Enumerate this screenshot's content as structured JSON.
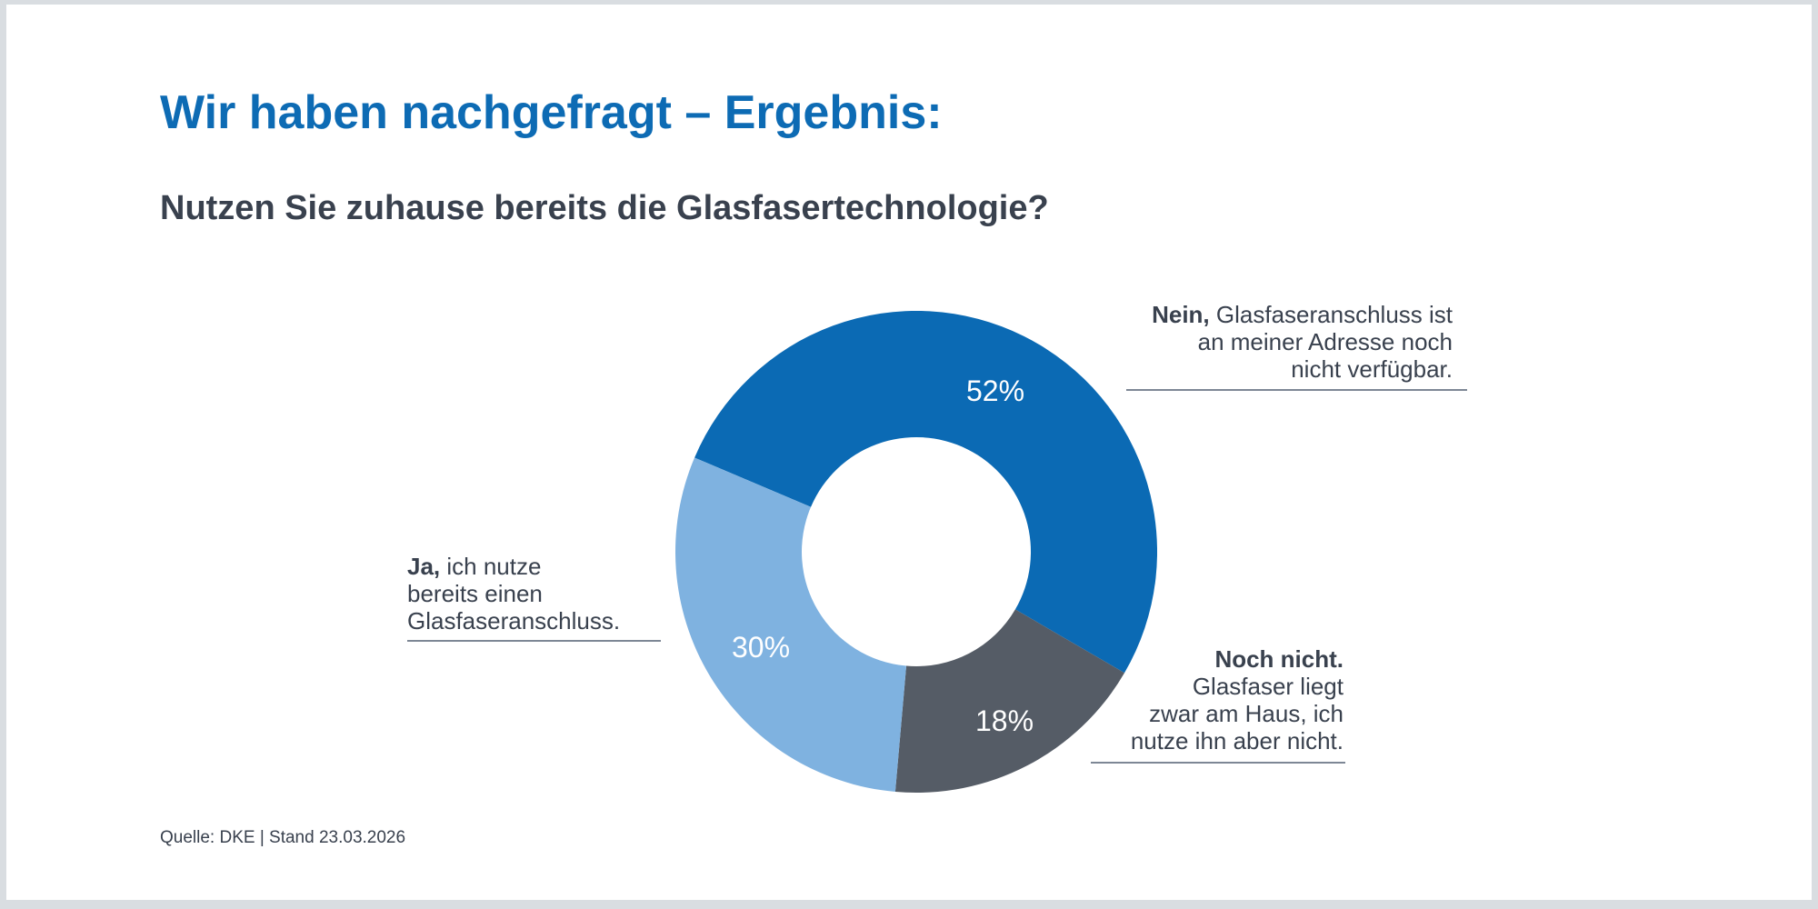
{
  "frame": {
    "background_color": "#d9dde1",
    "slide_background_color": "#ffffff"
  },
  "header": {
    "title": "Wir haben nachgefragt – Ergebnis:",
    "title_color": "#0d6bb4",
    "question": "Nutzen Sie zuhause bereits die Glasfasertechnologie?",
    "text_color": "#39414e"
  },
  "chart_data": {
    "type": "pie",
    "variant": "donut",
    "title": "Nutzen Sie zuhause bereits die Glasfasertechnologie?",
    "unit": "percent",
    "start_angle_deg": 293,
    "inner_radius_ratio": 0.475,
    "value_label_color": "#ffffff",
    "legend_position": "callouts",
    "slices": [
      {
        "name": "Nein, Glasfaseranschluss ist an meiner Adresse noch nicht verfügbar.",
        "value": 52,
        "display": "52%",
        "color": "#0b6ab4"
      },
      {
        "name": "Noch nicht. Glasfaser liegt zwar am Haus, ich nutze ihn aber nicht.",
        "value": 18,
        "display": "18%",
        "color": "#555c66"
      },
      {
        "name": "Ja, ich nutze bereits einen Glasfaseranschluss.",
        "value": 30,
        "display": "30%",
        "color": "#7fb2e0"
      }
    ]
  },
  "callouts": {
    "nein": {
      "bold": "Nein,",
      "line1_rest": " Glasfaseranschluss ist",
      "line2": "an meiner Adresse noch",
      "line3": "nicht verfügbar."
    },
    "ja": {
      "bold": "Ja,",
      "line1_rest": " ich nutze",
      "line2": "bereits einen",
      "line3": "Glasfaseranschluss."
    },
    "noch_nicht": {
      "bold": "Noch nicht.",
      "line2": "Glasfaser liegt",
      "line3": "zwar am Haus, ich",
      "line4": "nutze ihn aber nicht."
    }
  },
  "footer": {
    "source": "Quelle: DKE | Stand 23.03.2026"
  }
}
